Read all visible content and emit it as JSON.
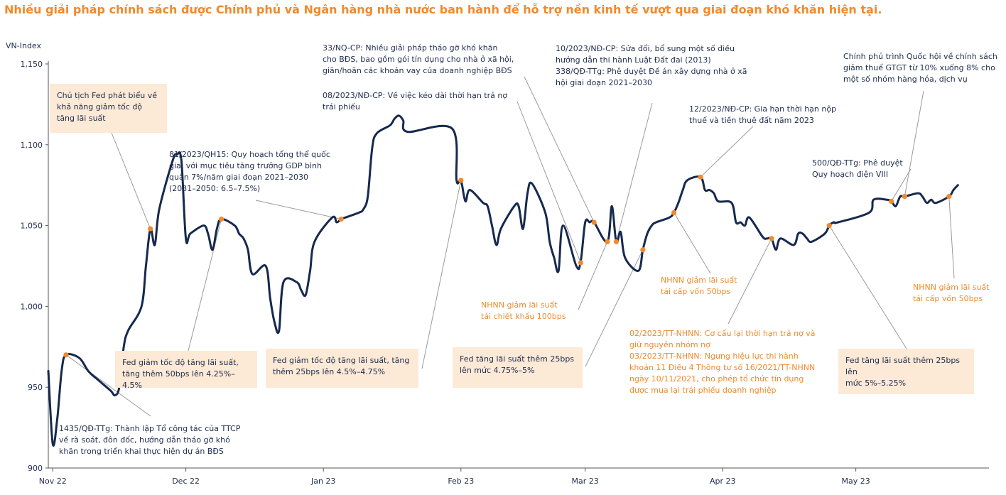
{
  "title": "Nhiều giải pháp chính sách được Chính phủ và Ngân hàng nhà nước ban hành để hỗ trợ nền kinh tế vượt qua giai đoạn khó khăn hiện tại.",
  "colors": {
    "title": "#f08a2c",
    "line": "#16294e",
    "marker": "#f08a2c",
    "box": "#fce9d6",
    "leader": "#9a9a9a"
  },
  "chart_data": {
    "type": "line",
    "ylabel": "VN-Index",
    "ylim": [
      900,
      1150
    ],
    "y_ticks": [
      "900",
      "950",
      "1,000",
      "1,050",
      "1,100",
      "1,150"
    ],
    "y_tick_values": [
      900,
      950,
      1000,
      1050,
      1100,
      1150
    ],
    "x_ticks": [
      "Nov 22",
      "Dec 22",
      "Jan 23",
      "Feb 23",
      "Mar 23",
      "Apr 23",
      "May 23"
    ],
    "x_tick_values": [
      "2022-11-01",
      "2022-12-01",
      "2023-01-01",
      "2023-02-01",
      "2023-03-01",
      "2023-04-01",
      "2023-05-01"
    ],
    "xlim": [
      "2022-10-31",
      "2023-05-31"
    ],
    "series": [
      {
        "points": [
          [
            "2022-10-31",
            960
          ],
          [
            "2022-11-01",
            915
          ],
          [
            "2022-11-02",
            930
          ],
          [
            "2022-11-03",
            960
          ],
          [
            "2022-11-04",
            970
          ],
          [
            "2022-11-07",
            968
          ],
          [
            "2022-11-09",
            960
          ],
          [
            "2022-11-11",
            955
          ],
          [
            "2022-11-14",
            948
          ],
          [
            "2022-11-15",
            945
          ],
          [
            "2022-11-16",
            950
          ],
          [
            "2022-11-17",
            975
          ],
          [
            "2022-11-18",
            985
          ],
          [
            "2022-11-21",
            1000
          ],
          [
            "2022-11-22",
            1025
          ],
          [
            "2022-11-23",
            1048
          ],
          [
            "2022-11-24",
            1038
          ],
          [
            "2022-11-25",
            1060
          ],
          [
            "2022-11-28",
            1090
          ],
          [
            "2022-11-29",
            1094
          ],
          [
            "2022-11-30",
            1090
          ],
          [
            "2022-12-01",
            1042
          ],
          [
            "2022-12-02",
            1045
          ],
          [
            "2022-12-05",
            1050
          ],
          [
            "2022-12-06",
            1045
          ],
          [
            "2022-12-07",
            1035
          ],
          [
            "2022-12-08",
            1048
          ],
          [
            "2022-12-09",
            1054
          ],
          [
            "2022-12-12",
            1050
          ],
          [
            "2022-12-13",
            1045
          ],
          [
            "2022-12-14",
            1042
          ],
          [
            "2022-12-15",
            1035
          ],
          [
            "2022-12-16",
            1020
          ],
          [
            "2022-12-19",
            1025
          ],
          [
            "2022-12-20",
            1005
          ],
          [
            "2022-12-21",
            990
          ],
          [
            "2022-12-22",
            985
          ],
          [
            "2022-12-23",
            1015
          ],
          [
            "2022-12-26",
            1015
          ],
          [
            "2022-12-27",
            1010
          ],
          [
            "2022-12-28",
            1007
          ],
          [
            "2022-12-29",
            1022
          ],
          [
            "2022-12-30",
            1040
          ],
          [
            "2023-01-03",
            1055
          ],
          [
            "2023-01-04",
            1052
          ],
          [
            "2023-01-05",
            1054
          ],
          [
            "2023-01-06",
            1055
          ],
          [
            "2023-01-09",
            1058
          ],
          [
            "2023-01-10",
            1060
          ],
          [
            "2023-01-11",
            1068
          ],
          [
            "2023-01-12",
            1098
          ],
          [
            "2023-01-13",
            1107
          ],
          [
            "2023-01-16",
            1112
          ],
          [
            "2023-01-17",
            1116
          ],
          [
            "2023-01-18",
            1118
          ],
          [
            "2023-01-19",
            1115
          ],
          [
            "2023-01-20",
            1108
          ],
          [
            "2023-01-30",
            1110
          ],
          [
            "2023-01-31",
            1078
          ],
          [
            "2023-02-01",
            1078
          ],
          [
            "2023-02-02",
            1065
          ],
          [
            "2023-02-03",
            1072
          ],
          [
            "2023-02-06",
            1064
          ],
          [
            "2023-02-07",
            1062
          ],
          [
            "2023-02-08",
            1050
          ],
          [
            "2023-02-09",
            1038
          ],
          [
            "2023-02-10",
            1048
          ],
          [
            "2023-02-13",
            1062
          ],
          [
            "2023-02-14",
            1062
          ],
          [
            "2023-02-15",
            1048
          ],
          [
            "2023-02-16",
            1070
          ],
          [
            "2023-02-17",
            1076
          ],
          [
            "2023-02-20",
            1058
          ],
          [
            "2023-02-21",
            1040
          ],
          [
            "2023-02-22",
            1030
          ],
          [
            "2023-02-23",
            1022
          ],
          [
            "2023-02-24",
            1050
          ],
          [
            "2023-02-27",
            1025
          ],
          [
            "2023-02-28",
            1028
          ],
          [
            "2023-03-01",
            1052
          ],
          [
            "2023-03-02",
            1052
          ],
          [
            "2023-03-03",
            1052
          ],
          [
            "2023-03-06",
            1040
          ],
          [
            "2023-03-07",
            1062
          ],
          [
            "2023-03-08",
            1040
          ],
          [
            "2023-03-09",
            1046
          ],
          [
            "2023-03-10",
            1030
          ],
          [
            "2023-03-13",
            1022
          ],
          [
            "2023-03-14",
            1035
          ],
          [
            "2023-03-15",
            1045
          ],
          [
            "2023-03-16",
            1050
          ],
          [
            "2023-03-17",
            1052
          ],
          [
            "2023-03-20",
            1055
          ],
          [
            "2023-03-21",
            1058
          ],
          [
            "2023-03-22",
            1064
          ],
          [
            "2023-03-23",
            1072
          ],
          [
            "2023-03-24",
            1078
          ],
          [
            "2023-03-27",
            1080
          ],
          [
            "2023-03-28",
            1072
          ],
          [
            "2023-03-29",
            1072
          ],
          [
            "2023-03-30",
            1070
          ],
          [
            "2023-03-31",
            1065
          ],
          [
            "2023-04-03",
            1064
          ],
          [
            "2023-04-04",
            1052
          ],
          [
            "2023-04-05",
            1052
          ],
          [
            "2023-04-06",
            1050
          ],
          [
            "2023-04-07",
            1055
          ],
          [
            "2023-04-10",
            1043
          ],
          [
            "2023-04-11",
            1042
          ],
          [
            "2023-04-12",
            1042
          ],
          [
            "2023-04-13",
            1035
          ],
          [
            "2023-04-14",
            1042
          ],
          [
            "2023-04-17",
            1038
          ],
          [
            "2023-04-18",
            1045
          ],
          [
            "2023-04-19",
            1045
          ],
          [
            "2023-04-20",
            1042
          ],
          [
            "2023-04-21",
            1040
          ],
          [
            "2023-04-24",
            1045
          ],
          [
            "2023-04-25",
            1050
          ],
          [
            "2023-04-26",
            1052
          ],
          [
            "2023-04-27",
            1052
          ],
          [
            "2023-05-04",
            1058
          ],
          [
            "2023-05-05",
            1066
          ],
          [
            "2023-05-08",
            1066
          ],
          [
            "2023-05-09",
            1065
          ],
          [
            "2023-05-10",
            1062
          ],
          [
            "2023-05-11",
            1068
          ],
          [
            "2023-05-12",
            1068
          ],
          [
            "2023-05-15",
            1070
          ],
          [
            "2023-05-16",
            1068
          ],
          [
            "2023-05-17",
            1064
          ],
          [
            "2023-05-18",
            1066
          ],
          [
            "2023-05-19",
            1064
          ],
          [
            "2023-05-22",
            1068
          ],
          [
            "2023-05-23",
            1072
          ],
          [
            "2023-05-24",
            1075
          ]
        ]
      }
    ]
  },
  "annotations": [
    {
      "id": "fed-speech",
      "text": "Chủ tịch Fed phát biểu về\nkhả năng giảm tốc độ\ntăng lãi suất",
      "style": "box",
      "date": "2022-11-23",
      "value": 1048
    },
    {
      "id": "resolution-81",
      "text": "81/2023/QH15: Quy hoạch tổng thể quốc\ngia, với mục tiêu tăng trưởng GDP bình\nquân 7%/năm giai đoạn 2021–2030\n(2031–2050: 6.5–7.5%)",
      "style": "plain",
      "date": "2023-01-05",
      "value": 1054
    },
    {
      "id": "resolution-33",
      "text": "33/NQ-CP: Nhiều giải pháp tháo gỡ khó khăn\ncho BĐS, bao gồm gói tín dụng cho nhà ở xã hội,\ngiãn/hoãn các khoản vay của doanh nghiệp BĐS",
      "style": "plain",
      "date": "2023-03-03",
      "value": 1052
    },
    {
      "id": "decree-08",
      "text": "08/2023/NĐ-CP: Về việc kéo dài thời hạn trả nợ\ntrái phiếu",
      "style": "plain",
      "date": "2023-02-28",
      "value": 1027
    },
    {
      "id": "decree-10",
      "text": "10/2023/NĐ-CP: Sửa đổi, bổ sung một số điều\nhướng dẫn thi hành Luật Đất đai (2013)\n338/QĐ-TTg: Phê duyệt Đề án xây dựng nhà ở xã\nhội giai đoạn 2021–2030",
      "style": "plain",
      "date": "2023-03-08",
      "value": 1040
    },
    {
      "id": "decree-12",
      "text": "12/2023/NĐ-CP: Gia hạn thời hạn nộp\nthuế và tiền thuê đất năm 2023",
      "style": "plain",
      "date": "2023-03-27",
      "value": 1080
    },
    {
      "id": "vat-cut",
      "text": "Chính phủ trình Quốc hội về chính sách\ngiảm thuế GTGT từ 10% xuống 8% cho\nmột số nhóm hàng hóa, dịch vụ",
      "style": "plain",
      "date": "2023-05-12",
      "value": 1068
    },
    {
      "id": "pdp8",
      "text": "500/QĐ-TTg: Phê duyệt\nQuy hoạch điện VIII",
      "style": "plain",
      "date": "2023-05-09",
      "value": 1065
    },
    {
      "id": "fed-dec",
      "text": "Fed giảm tốc độ tăng lãi suất,\ntăng thêm 50bps lên 4.25%–4.5%",
      "style": "box",
      "date": "2022-12-09",
      "value": 1054
    },
    {
      "id": "fed-feb",
      "text": "Fed giảm tốc độ tăng lãi suất, tăng\nthêm 25bps lên 4.5%–4.75%",
      "style": "box",
      "date": "2023-02-01",
      "value": 1078
    },
    {
      "id": "fed-mar",
      "text": "Fed tăng lãi suất thêm 25bps\nlên mức 4.75%–5%",
      "style": "box",
      "date": "2023-03-14",
      "value": 1035
    },
    {
      "id": "fed-may",
      "text": "Fed tăng lãi suất thêm 25bps lên\nmức 5%–5.25%",
      "style": "box",
      "date": "2023-04-25",
      "value": 1050
    },
    {
      "id": "sbv-discount",
      "text": "NHNN giảm lãi suất\ntái chiết khấu 100bps",
      "style": "orange",
      "date": "2023-03-06",
      "value": 1040
    },
    {
      "id": "sbv-refi-mar",
      "text": "NHNN giảm lãi suất\ntái cấp vốn 50bps",
      "style": "orange",
      "date": "2023-03-21",
      "value": 1058
    },
    {
      "id": "sbv-refi-may",
      "text": "NHNN giảm lãi suất\ntái cấp vốn 50bps",
      "style": "orange",
      "date": "2023-05-22",
      "value": 1068
    },
    {
      "id": "circular-02",
      "text": "02/2023/TT-NHNN: Cơ cấu lại thời hạn trả nợ và\ngiữ nguyên nhóm nợ\n03/2023/TT-NHNN: Ngưng hiệu lực thi hành\nkhoản 11 Điều 4 Thông tư số 16/2021/TT-NHNN\nngày 10/11/2021, cho phép tổ chức tín dụng\nđược mua lại trái phiếu doanh nghiệp",
      "style": "orange",
      "date": "2023-04-12",
      "value": 1042
    },
    {
      "id": "decision-1435",
      "text": "1435/QĐ-TTg: Thành lập Tổ công tác của TTCP\nvề rà soát, đôn đốc, hướng dẫn tháo gỡ khó\nkhăn trong triển khai thực hiện dự án BĐS",
      "style": "plain",
      "date": "2022-11-04",
      "value": 970
    }
  ]
}
